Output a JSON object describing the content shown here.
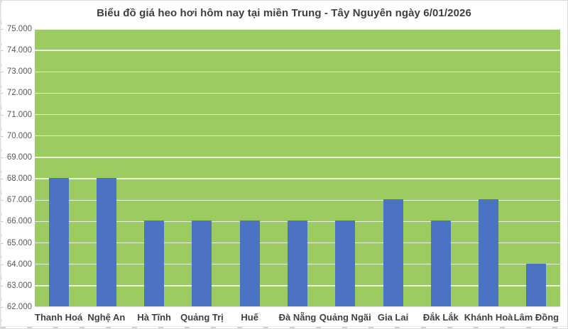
{
  "chart_data": {
    "type": "bar",
    "title": "Biểu đồ giá heo hơi hôm nay tại miền Trung - Tây Nguyên ngày 6/01/2026",
    "categories": [
      "Thanh Hoá",
      "Nghệ An",
      "Hà Tĩnh",
      "Quảng Trị",
      "Huế",
      "Đà Nẵng",
      "Quảng Ngãi",
      "Gia Lai",
      "Đắk Lắk",
      "Khánh Hoà",
      "Lâm Đồng"
    ],
    "values": [
      68000,
      68000,
      66000,
      66000,
      66000,
      66000,
      66000,
      67000,
      66000,
      67000,
      64000
    ],
    "xlabel": "",
    "ylabel": "",
    "ylim": [
      62000,
      75000
    ],
    "y_tick_step": 1000,
    "y_tick_labels": [
      "62.000",
      "63.000",
      "64.000",
      "65.000",
      "66.000",
      "67.000",
      "68.000",
      "69.000",
      "70.000",
      "71.000",
      "72.000",
      "73.000",
      "74.000",
      "75.000"
    ],
    "grid": true,
    "legend": null,
    "colors": {
      "bar": "#4C72C4",
      "plot_background": "#9CCB62",
      "gridline": "rgba(255,255,255,0.75)",
      "title_text": "#3F3F3F",
      "y_tick_text": "#595959",
      "x_tick_text": "#3C3F46"
    }
  }
}
